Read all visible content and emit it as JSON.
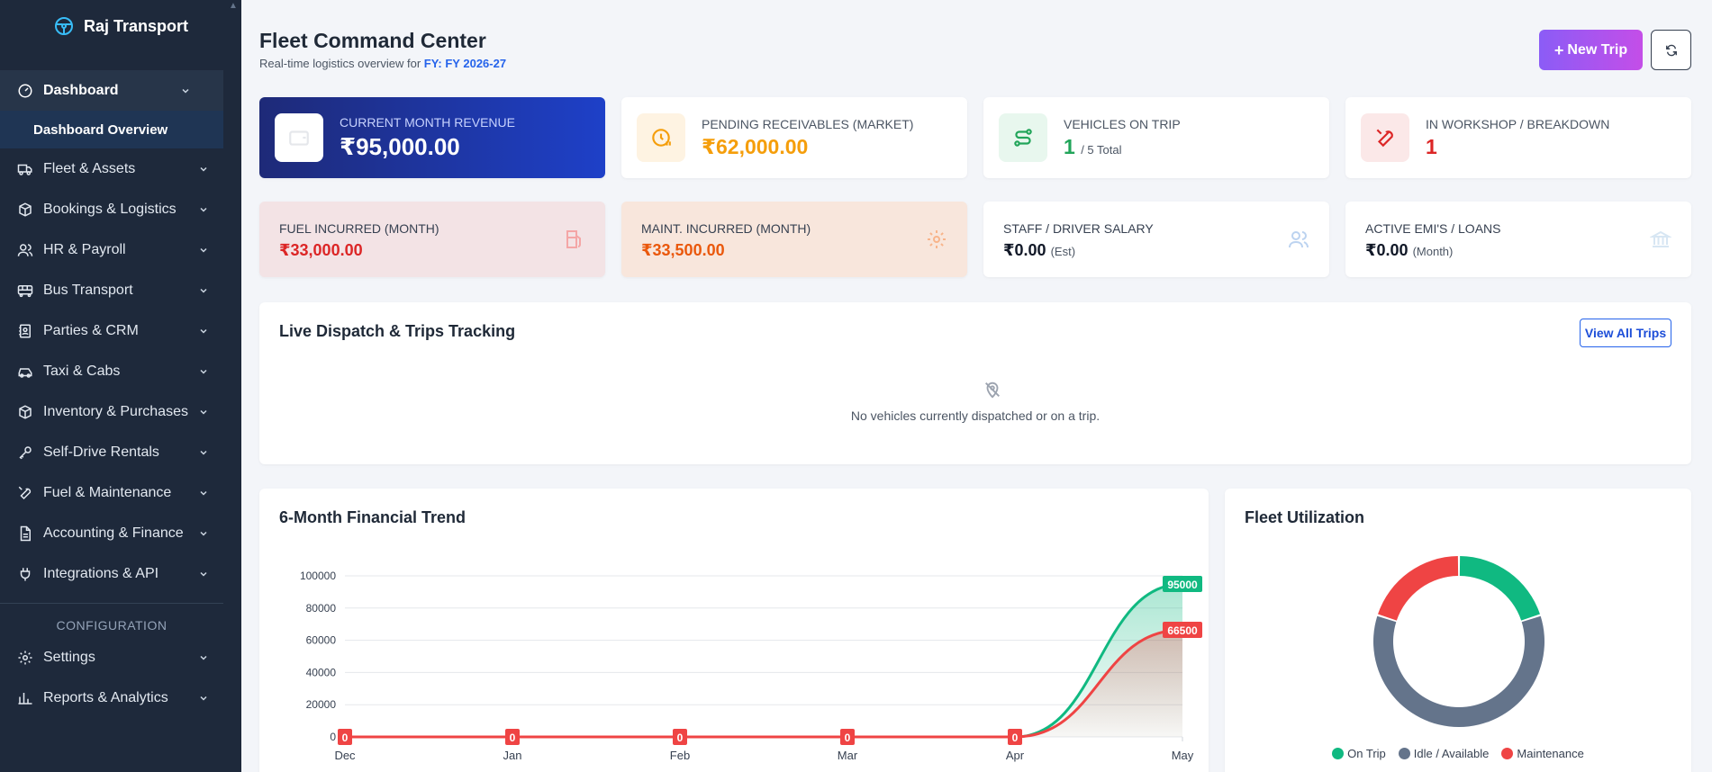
{
  "app": {
    "brand": "Raj Transport"
  },
  "sidebar": {
    "items": [
      {
        "key": "dashboard",
        "label": "Dashboard"
      },
      {
        "key": "fleet",
        "label": "Fleet & Assets"
      },
      {
        "key": "bookings",
        "label": "Bookings & Logistics"
      },
      {
        "key": "hr",
        "label": "HR & Payroll"
      },
      {
        "key": "bus",
        "label": "Bus Transport"
      },
      {
        "key": "parties",
        "label": "Parties & CRM"
      },
      {
        "key": "taxi",
        "label": "Taxi & Cabs"
      },
      {
        "key": "inventory",
        "label": "Inventory & Purchases"
      },
      {
        "key": "selfdrive",
        "label": "Self-Drive Rentals"
      },
      {
        "key": "fuel",
        "label": "Fuel & Maintenance"
      },
      {
        "key": "accounting",
        "label": "Accounting & Finance"
      },
      {
        "key": "integrations",
        "label": "Integrations & API"
      }
    ],
    "subitem": "Dashboard Overview",
    "config_label": "CONFIGURATION",
    "config_items": [
      {
        "key": "settings",
        "label": "Settings"
      },
      {
        "key": "reports",
        "label": "Reports & Analytics"
      }
    ]
  },
  "header": {
    "title": "Fleet Command Center",
    "subtitle_prefix": "Real-time logistics overview for ",
    "fy": "FY: FY 2026-27",
    "new_trip_label": "New Trip"
  },
  "kpis": {
    "revenue": {
      "label": "CURRENT MONTH REVENUE",
      "value": "₹95,000.00"
    },
    "receivables": {
      "label": "PENDING RECEIVABLES (MARKET)",
      "value": "₹62,000.00"
    },
    "on_trip": {
      "label": "VEHICLES ON TRIP",
      "value": "1",
      "suffix": "/ 5 Total"
    },
    "workshop": {
      "label": "IN WORKSHOP / BREAKDOWN",
      "value": "1"
    },
    "fuel": {
      "label": "FUEL INCURRED (MONTH)",
      "value": "₹33,000.00"
    },
    "maint": {
      "label": "MAINT. INCURRED (MONTH)",
      "value": "₹33,500.00"
    },
    "salary": {
      "label": "STAFF / DRIVER SALARY",
      "value": "₹0.00",
      "suffix": "(Est)"
    },
    "emi": {
      "label": "ACTIVE EMI'S / LOANS",
      "value": "₹0.00",
      "suffix": "(Month)"
    }
  },
  "dispatch": {
    "title": "Live Dispatch & Trips Tracking",
    "view_all": "View All Trips",
    "empty": "No vehicles currently dispatched or on a trip."
  },
  "trend": {
    "title": "6-Month Financial Trend"
  },
  "fleet": {
    "title": "Fleet Utilization",
    "legend": [
      {
        "label": "On Trip",
        "color": "#10b981"
      },
      {
        "label": "Idle / Available",
        "color": "#64748b"
      },
      {
        "label": "Maintenance",
        "color": "#ef4444"
      }
    ]
  },
  "chart_data": [
    {
      "type": "area",
      "title": "6-Month Financial Trend",
      "categories": [
        "Dec",
        "Jan",
        "Feb",
        "Mar",
        "Apr",
        "May"
      ],
      "series": [
        {
          "values": [
            0,
            0,
            0,
            0,
            0,
            95000
          ],
          "color": "#10b981"
        },
        {
          "values": [
            0,
            0,
            0,
            0,
            0,
            66500
          ],
          "color": "#ef4444"
        }
      ],
      "ylim": [
        0,
        100000
      ],
      "yticks": [
        0,
        20000,
        40000,
        60000,
        80000,
        100000
      ],
      "data_labels": "on"
    },
    {
      "type": "pie",
      "title": "Fleet Utilization",
      "labels": [
        "On Trip",
        "Idle / Available",
        "Maintenance"
      ],
      "values": [
        1,
        3,
        1
      ],
      "colors": [
        "#10b981",
        "#64748b",
        "#ef4444"
      ],
      "legend": "bottom"
    }
  ]
}
